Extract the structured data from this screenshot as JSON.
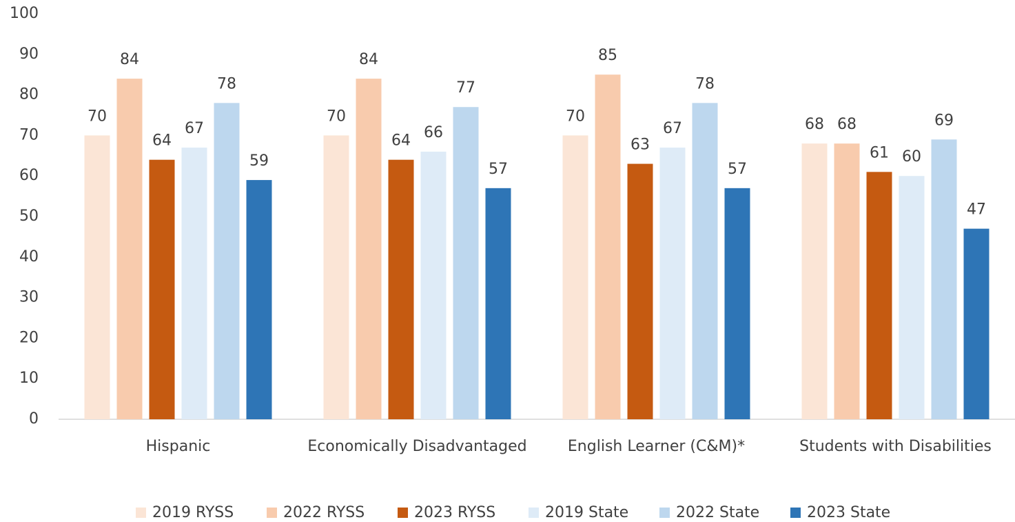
{
  "chart_data": {
    "type": "bar",
    "categories": [
      "Hispanic",
      "Economically Disadvantaged",
      "English Learner (C&M)*",
      "Students with Disabilities"
    ],
    "series": [
      {
        "name": "2019 RYSS",
        "color": "#FBE5D6",
        "values": [
          70,
          70,
          70,
          68
        ]
      },
      {
        "name": "2022 RYSS",
        "color": "#F8CBAD",
        "values": [
          84,
          84,
          85,
          68
        ]
      },
      {
        "name": "2023 RYSS",
        "color": "#C55A11",
        "values": [
          64,
          64,
          63,
          61
        ]
      },
      {
        "name": "2019 State",
        "color": "#DEEBF7",
        "values": [
          67,
          66,
          67,
          60
        ]
      },
      {
        "name": "2022 State",
        "color": "#BDD7EE",
        "values": [
          78,
          77,
          78,
          69
        ]
      },
      {
        "name": "2023 State",
        "color": "#2E75B6",
        "values": [
          59,
          57,
          57,
          47
        ]
      }
    ],
    "ylim": [
      0,
      100
    ],
    "yticks": [
      0,
      10,
      20,
      30,
      40,
      50,
      60,
      70,
      80,
      90,
      100
    ],
    "grid": false,
    "legend": "bottom"
  }
}
